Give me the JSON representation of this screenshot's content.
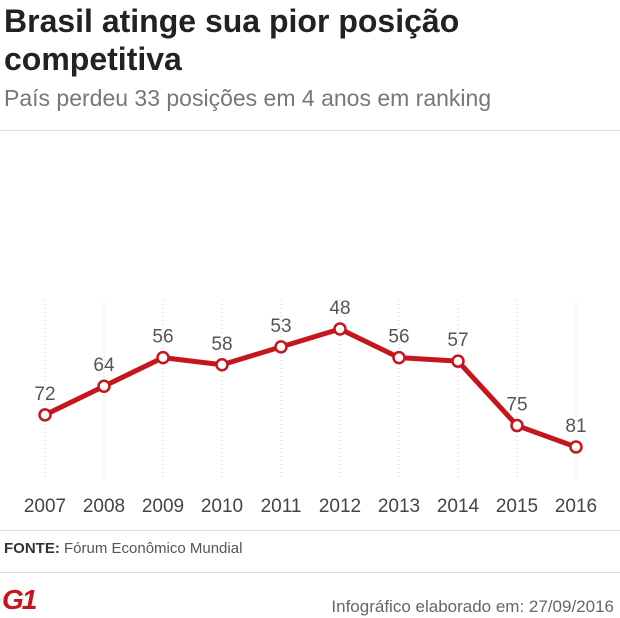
{
  "header": {
    "title": "Brasil atinge sua pior posição competitiva",
    "subtitle": "País perdeu 33 posições em 4 anos em ranking"
  },
  "chart_data": {
    "type": "line",
    "title": "Brasil atinge sua pior posição competitiva",
    "subtitle": "País perdeu 33 posições em 4 anos em ranking",
    "xlabel": "",
    "ylabel": "",
    "categories": [
      "2007",
      "2008",
      "2009",
      "2010",
      "2011",
      "2012",
      "2013",
      "2014",
      "2015",
      "2016"
    ],
    "series": [
      {
        "values": [
          72,
          64,
          56,
          58,
          53,
          48,
          56,
          57,
          75,
          81
        ]
      }
    ],
    "y_reversed": true,
    "ylim": [
      90,
      40
    ],
    "grid": "vertical dotted",
    "legend": "none",
    "colors": {
      "line": "#c4161c",
      "marker_fill": "#ffffff",
      "grid": "#cccccc"
    }
  },
  "footer": {
    "source_label": "FONTE:",
    "source_text": "Fórum Econômico Mundial",
    "logo_text": "G1",
    "note": "Infográfico elaborado em: 27/09/2016"
  }
}
